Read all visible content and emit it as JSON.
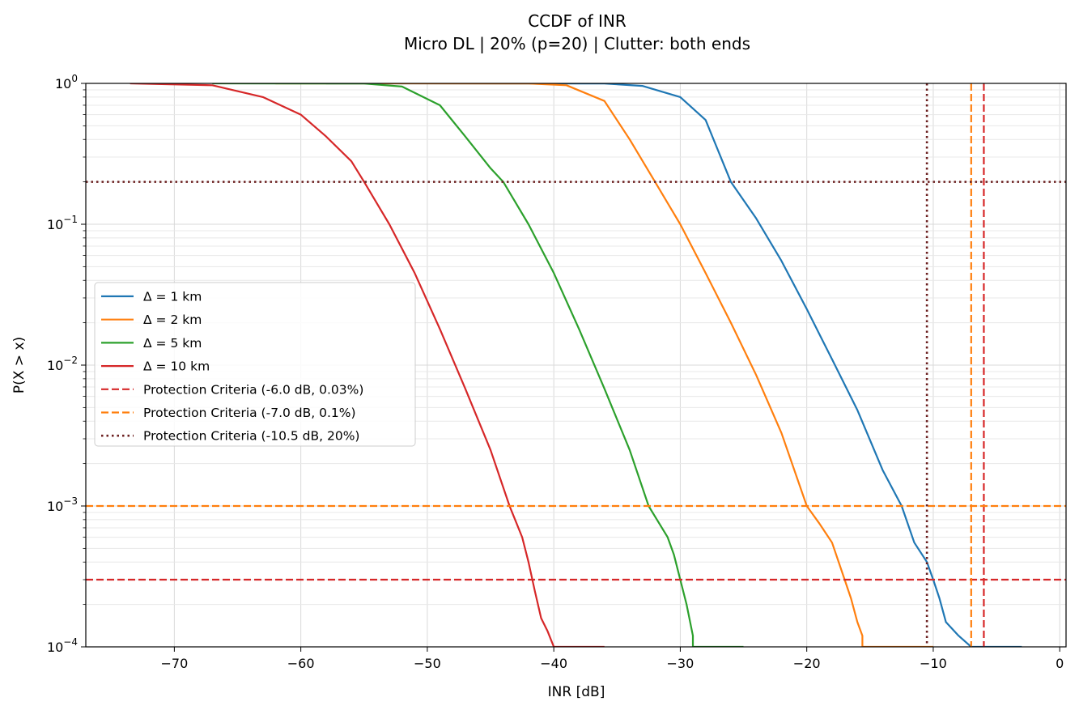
{
  "chart_data": {
    "type": "line",
    "title": "CCDF of INR",
    "subtitle": "Micro DL | 20% (p=20) | Clutter: both ends",
    "xlabel": "INR [dB]",
    "ylabel": "P(X > x)",
    "xlim": [
      -77,
      0.5
    ],
    "ylim": [
      0.0001,
      1
    ],
    "yscale": "log",
    "grid": true,
    "legend_position": "center-left",
    "xticks": [
      -70,
      -60,
      -50,
      -40,
      -30,
      -20,
      -10,
      0
    ],
    "xtick_labels": [
      "−70",
      "−60",
      "−50",
      "−40",
      "−30",
      "−20",
      "−10",
      "0"
    ],
    "yticks": [
      {
        "value": 1,
        "base": "10",
        "exp": "0"
      },
      {
        "value": 0.1,
        "base": "10",
        "exp": "−1"
      },
      {
        "value": 0.01,
        "base": "10",
        "exp": "−2"
      },
      {
        "value": 0.001,
        "base": "10",
        "exp": "−3"
      },
      {
        "value": 0.0001,
        "base": "10",
        "exp": "−4"
      }
    ],
    "series": [
      {
        "name": "Δ = 1 km",
        "color": "#1f77b4",
        "style": "solid",
        "points": [
          [
            -58,
            1
          ],
          [
            -36,
            0.998
          ],
          [
            -33,
            0.96
          ],
          [
            -30,
            0.8
          ],
          [
            -28,
            0.55
          ],
          [
            -26,
            0.2
          ],
          [
            -24,
            0.11
          ],
          [
            -22,
            0.055
          ],
          [
            -20,
            0.025
          ],
          [
            -18,
            0.011
          ],
          [
            -16,
            0.0048
          ],
          [
            -14,
            0.0018
          ],
          [
            -12.5,
            0.001
          ],
          [
            -11.5,
            0.00055
          ],
          [
            -10.5,
            0.0004
          ],
          [
            -10,
            0.0003
          ],
          [
            -9.5,
            0.00022
          ],
          [
            -9,
            0.00015
          ],
          [
            -8,
            0.00012
          ],
          [
            -7,
            0.0001
          ],
          [
            -3,
            0.0001
          ]
        ]
      },
      {
        "name": "Δ = 2 km",
        "color": "#ff7f0e",
        "style": "solid",
        "points": [
          [
            -62,
            1
          ],
          [
            -42,
            0.999
          ],
          [
            -39,
            0.97
          ],
          [
            -36,
            0.75
          ],
          [
            -34,
            0.4
          ],
          [
            -32,
            0.2
          ],
          [
            -30,
            0.1
          ],
          [
            -28,
            0.045
          ],
          [
            -26,
            0.02
          ],
          [
            -24,
            0.0085
          ],
          [
            -22,
            0.0033
          ],
          [
            -20,
            0.001
          ],
          [
            -19,
            0.00075
          ],
          [
            -18,
            0.00055
          ],
          [
            -17,
            0.0003
          ],
          [
            -16.5,
            0.00022
          ],
          [
            -16,
            0.00015
          ],
          [
            -15.6,
            0.00012
          ],
          [
            -15.6,
            0.0001
          ],
          [
            -10,
            0.0001
          ]
        ]
      },
      {
        "name": "Δ = 5 km",
        "color": "#2ca02c",
        "style": "solid",
        "points": [
          [
            -67,
            1
          ],
          [
            -55,
            0.997
          ],
          [
            -52,
            0.95
          ],
          [
            -49,
            0.7
          ],
          [
            -47,
            0.42
          ],
          [
            -45,
            0.25
          ],
          [
            -44,
            0.2
          ],
          [
            -42,
            0.1
          ],
          [
            -40,
            0.045
          ],
          [
            -38,
            0.018
          ],
          [
            -36,
            0.0068
          ],
          [
            -34,
            0.0025
          ],
          [
            -32.5,
            0.001
          ],
          [
            -31,
            0.0006
          ],
          [
            -30.5,
            0.00045
          ],
          [
            -30,
            0.0003
          ],
          [
            -29.5,
            0.0002
          ],
          [
            -29,
            0.00012
          ],
          [
            -29,
            0.0001
          ],
          [
            -25,
            0.0001
          ]
        ]
      },
      {
        "name": "Δ = 10 km",
        "color": "#d62728",
        "style": "solid",
        "points": [
          [
            -73.5,
            1
          ],
          [
            -67,
            0.97
          ],
          [
            -63,
            0.8
          ],
          [
            -60,
            0.6
          ],
          [
            -58,
            0.42
          ],
          [
            -56,
            0.28
          ],
          [
            -55,
            0.2
          ],
          [
            -53,
            0.1
          ],
          [
            -51,
            0.045
          ],
          [
            -49,
            0.018
          ],
          [
            -47,
            0.0068
          ],
          [
            -45,
            0.0025
          ],
          [
            -43.5,
            0.001
          ],
          [
            -42.5,
            0.0006
          ],
          [
            -42,
            0.0004
          ],
          [
            -41.5,
            0.00025
          ],
          [
            -41,
            0.00016
          ],
          [
            -40.5,
            0.00013
          ],
          [
            -40,
            0.0001
          ],
          [
            -36,
            0.0001
          ]
        ]
      }
    ],
    "reference_lines": [
      {
        "name": "Protection Criteria (-6.0 dB, 0.03%)",
        "color": "#d62728",
        "style": "dashed",
        "x": -6.0,
        "y": 0.0003
      },
      {
        "name": "Protection Criteria (-7.0 dB, 0.1%)",
        "color": "#ff7f0e",
        "style": "dashed",
        "x": -7.0,
        "y": 0.001
      },
      {
        "name": "Protection Criteria (-10.5 dB, 20%)",
        "color": "#6b1f1f",
        "style": "dotted",
        "x": -10.5,
        "y": 0.2
      }
    ]
  }
}
